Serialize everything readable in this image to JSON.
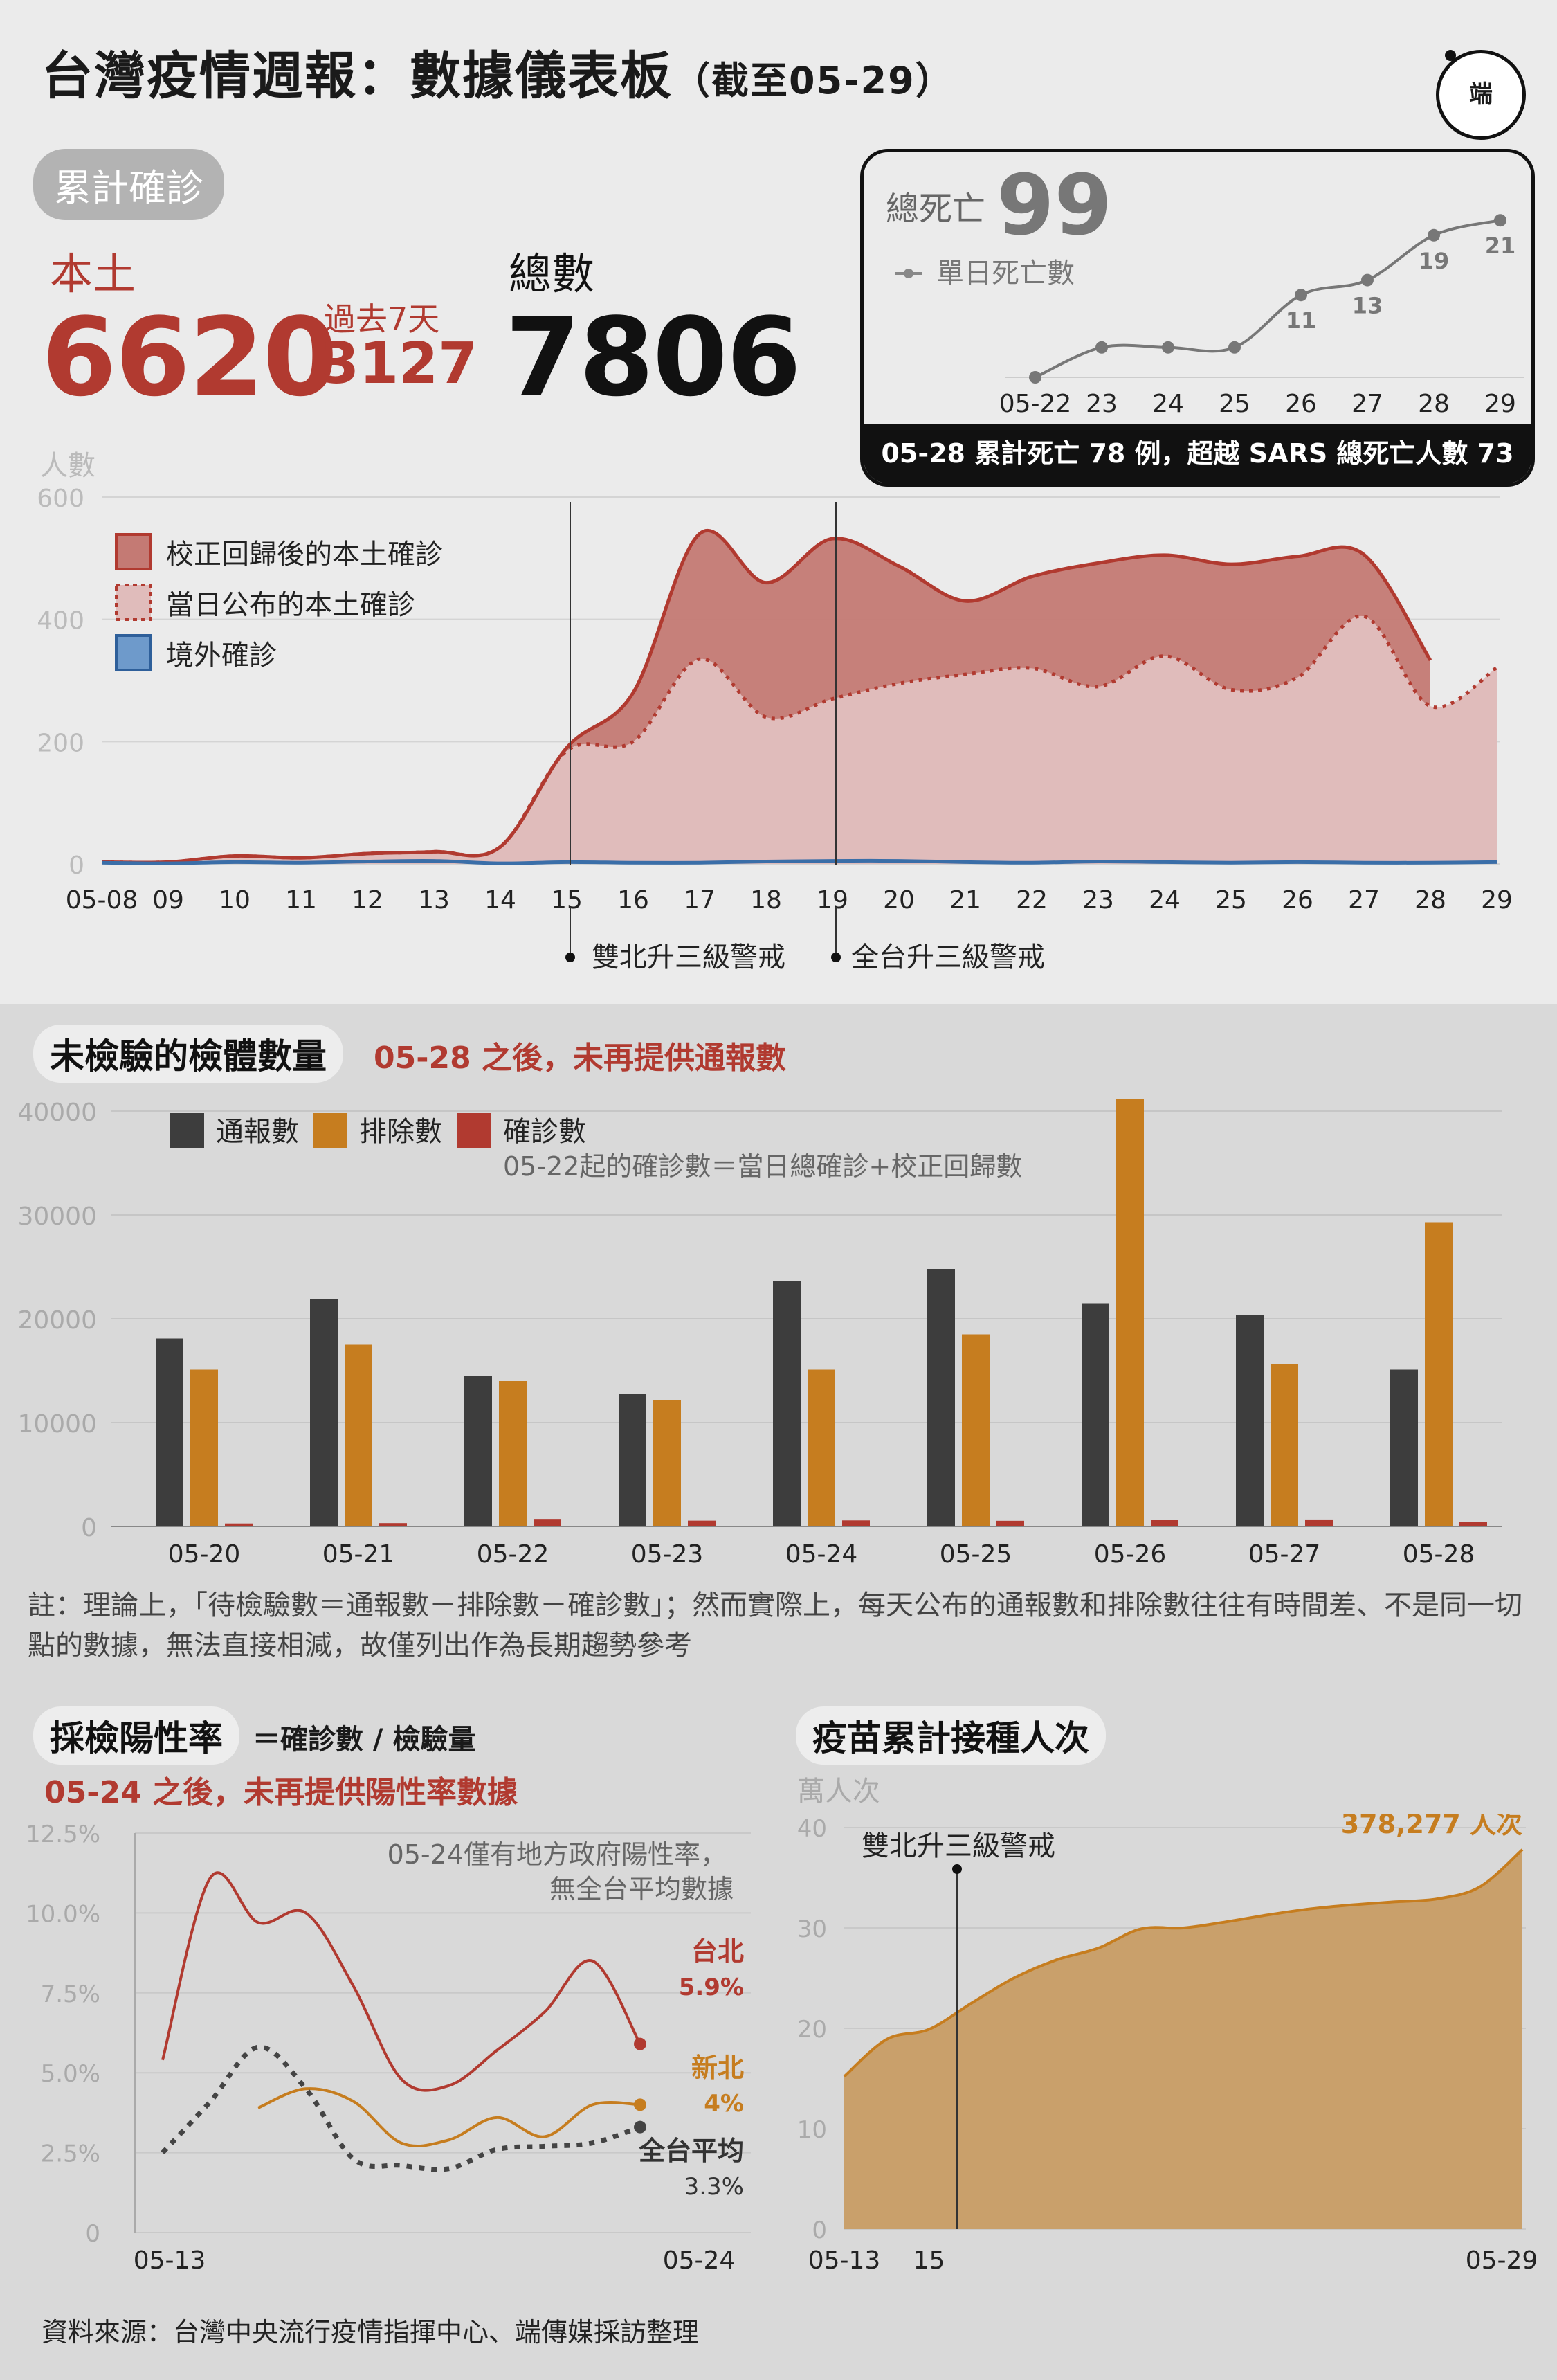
{
  "title": "台灣疫情週報：數據儀表板",
  "title_suffix": "（截至05-29）",
  "logo": {
    "text": "端",
    "icon": "initium-logo-icon"
  },
  "cumulative_pill": "累計確診",
  "local_label": "本土",
  "local_total": "6620",
  "past7_label": "過去7天",
  "past7_value": "3127",
  "total_label": "總數",
  "total_value": "7806",
  "deaths": {
    "label": "總死亡",
    "total": "99",
    "legend": "單日死亡數",
    "note": "05-28 累計死亡 78 例，超越 SARS 總死亡人數 73",
    "chart_data": {
      "type": "line",
      "categories": [
        "05-22",
        "23",
        "24",
        "25",
        "26",
        "27",
        "28",
        "29"
      ],
      "values": [
        0,
        4,
        4,
        4,
        11,
        13,
        19,
        21
      ],
      "labeled_points": {
        "26": "11",
        "27": "13",
        "28": "19",
        "29": "21"
      },
      "color": "#777777"
    }
  },
  "cases": {
    "ylabel": "人數",
    "legend": [
      "校正回歸後的本土確診",
      "當日公布的本土確診",
      "境外確診"
    ],
    "annotations": [
      "雙北升三級警戒",
      "全台升三級警戒"
    ],
    "chart_data": {
      "type": "area",
      "categories": [
        "05-08",
        "09",
        "10",
        "11",
        "12",
        "13",
        "14",
        "15",
        "16",
        "17",
        "18",
        "19",
        "20",
        "21",
        "22",
        "23",
        "24",
        "25",
        "26",
        "27",
        "28",
        "29"
      ],
      "ylim": [
        0,
        600
      ],
      "yticks": [
        "0",
        "200",
        "400",
        "600"
      ],
      "series": [
        {
          "name": "校正回歸後的本土確診",
          "color": "#b13a30",
          "values": [
            3,
            3,
            13,
            10,
            17,
            20,
            28,
            190,
            280,
            540,
            460,
            532,
            487,
            430,
            470,
            492,
            505,
            490,
            503,
            506,
            333,
            null
          ]
        },
        {
          "name": "當日公布的本土確診",
          "color": "#e0bcbb",
          "values": [
            3,
            3,
            13,
            10,
            17,
            20,
            28,
            185,
            200,
            335,
            240,
            270,
            295,
            310,
            320,
            290,
            340,
            285,
            305,
            405,
            258,
            321
          ]
        },
        {
          "name": "境外確診",
          "color": "#3a6ea8",
          "values": [
            2,
            1,
            3,
            2,
            4,
            5,
            1,
            3,
            2,
            2,
            4,
            5,
            5,
            3,
            2,
            4,
            3,
            2,
            3,
            2,
            2,
            3
          ]
        }
      ]
    }
  },
  "tests": {
    "header": "未檢驗的檢體數量",
    "red_note": "05-28 之後，未再提供通報數",
    "legend": [
      "通報數",
      "排除數",
      "確診數"
    ],
    "legend_note": "05-22起的確診數＝當日總確診+校正回歸數",
    "chart_data": {
      "type": "bar",
      "categories": [
        "05-20",
        "05-21",
        "05-22",
        "05-23",
        "05-24",
        "05-25",
        "05-26",
        "05-27",
        "05-28"
      ],
      "ylim": [
        0,
        40000
      ],
      "yticks": [
        "0",
        "10000",
        "20000",
        "30000",
        "40000"
      ],
      "series": [
        {
          "name": "通報數",
          "color": "#3d3d3d",
          "values": [
            18100,
            21900,
            14500,
            12800,
            23600,
            24800,
            21500,
            20400,
            15100
          ]
        },
        {
          "name": "排除數",
          "color": "#c67d1f",
          "values": [
            15100,
            17500,
            14000,
            12200,
            15100,
            18500,
            41200,
            15600,
            29300
          ]
        },
        {
          "name": "確診數",
          "color": "#b13a30",
          "values": [
            286,
            321,
            723,
            558,
            581,
            544,
            613,
            671,
            409
          ]
        }
      ]
    },
    "note": "註：理論上，「待檢驗數＝通報數－排除數－確診數」；然而實際上，每天公布的通報數和排除數往往有時間差、不是同一切點的數據，無法直接相減，故僅列出作為長期趨勢參考"
  },
  "positivity": {
    "header": "採檢陽性率",
    "formula": "＝確診數 / 檢驗量",
    "red_note": "05-24 之後，未再提供陽性率數據",
    "note_line1": "05-24僅有地方政府陽性率，",
    "note_line2": "無全台平均數據",
    "labels": {
      "taipei": "台北",
      "taipei_value": "5.9%",
      "newtaipei": "新北",
      "newtaipei_value": "4%",
      "national": "全台平均",
      "national_value": "3.3%"
    },
    "chart_data": {
      "type": "line",
      "x": [
        "05-13",
        "05-14",
        "05-15",
        "05-16",
        "05-17",
        "05-18",
        "05-19",
        "05-20",
        "05-21",
        "05-22",
        "05-23",
        "05-24"
      ],
      "xticks": [
        "05-13",
        "05-24"
      ],
      "ylim": [
        0,
        12.5
      ],
      "yticks": [
        "0",
        "2.5%",
        "5.0%",
        "7.5%",
        "10.0%",
        "12.5%"
      ],
      "series": [
        {
          "name": "台北",
          "color": "#b13a30",
          "values": [
            5.4,
            11.1,
            9.7,
            10.0,
            7.7,
            4.8,
            4.6,
            5.7,
            6.9,
            8.5,
            5.9,
            null
          ]
        },
        {
          "name": "新北",
          "color": "#c67d1f",
          "values": [
            null,
            null,
            3.9,
            4.5,
            4.1,
            2.8,
            2.9,
            3.6,
            3.0,
            4.0,
            4.0,
            null
          ]
        },
        {
          "name": "全台平均",
          "color": "#444444",
          "values": [
            2.5,
            4.1,
            5.8,
            4.5,
            2.3,
            2.1,
            2.0,
            2.6,
            2.7,
            2.8,
            3.3,
            null
          ]
        }
      ]
    }
  },
  "vaccine": {
    "header": "疫苗累計接種人次",
    "ylabel": "萬人次",
    "annotation": "雙北升三級警戒",
    "end_label": "378,277 人次",
    "chart_data": {
      "type": "area",
      "x": [
        "05-13",
        "14",
        "15",
        "16",
        "17",
        "18",
        "19",
        "20",
        "21",
        "22",
        "23",
        "24",
        "25",
        "26",
        "27",
        "28",
        "29"
      ],
      "xticks": [
        "05-13",
        "15",
        "05-29"
      ],
      "ylim": [
        0,
        40
      ],
      "yticks": [
        "0",
        "10",
        "20",
        "30",
        "40"
      ],
      "color": "#c9a06b",
      "values": [
        15.2,
        18.9,
        19.9,
        22.5,
        25.0,
        26.8,
        28.0,
        29.9,
        30.0,
        30.6,
        31.3,
        31.9,
        32.3,
        32.6,
        32.9,
        34.1,
        37.8
      ]
    }
  },
  "source": "資料來源：台灣中央流行疫情指揮中心、端傳媒採訪整理"
}
